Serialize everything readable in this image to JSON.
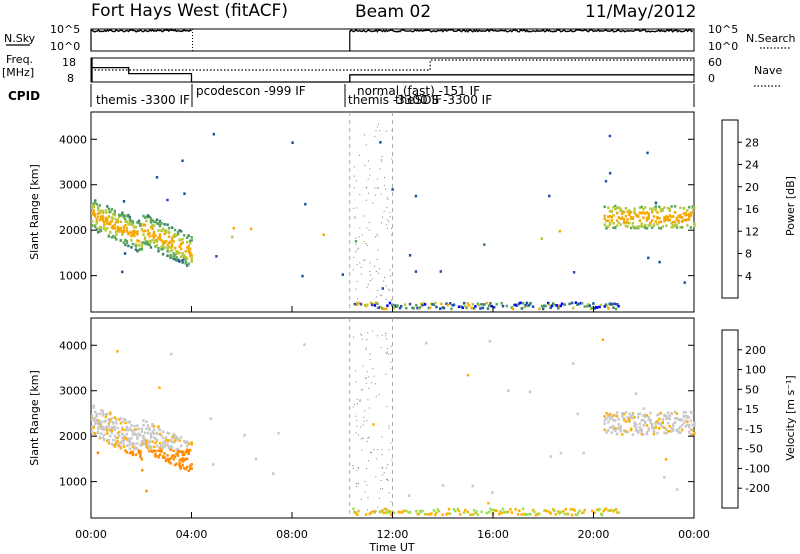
{
  "header": {
    "station": "Fort Hays West (fitACF)",
    "beam": "Beam 02",
    "date": "11/May/2012"
  },
  "colors": {
    "text": "#000000",
    "noise_line": "#000000",
    "power_scale": [
      "#0000ff",
      "#1f4fa8",
      "#3a7d6a",
      "#5aa85a",
      "#b7c93a",
      "#f5a800",
      "#ff7a00",
      "#ff3a00",
      "#e00000"
    ],
    "velocity_scale": [
      "#ff0000",
      "#ff5a00",
      "#ff8c00",
      "#ffb000",
      "#c8c8c8",
      "#c8c8c8",
      "#9be050",
      "#4db84d",
      "#2a8a6a",
      "#3060c0",
      "#2030a0",
      "#0000c0"
    ],
    "ground_scatter": "#7f7f7f"
  },
  "labels": {
    "nsky": "N.Sky",
    "nsearch": "N.Search",
    "freq_line1": "Freq.",
    "freq_line2": "[MHz]",
    "nave": "Nave",
    "cpid": "CPID",
    "noise_top": "10^5",
    "noise_bottom": "10^0",
    "noise_top_right": "10^5",
    "noise_bottom_right": "10^0",
    "freq_top": "18",
    "freq_bottom": "8",
    "nave_top": "60",
    "nave_bottom": "0",
    "ylabel": "Slant Range [km]",
    "xlabel": "Time UT",
    "power_cbar": "Power [dB]",
    "velocity_cbar": "Velocity [m s⁻¹]"
  },
  "cpid_segments": [
    {
      "text": "themis -3300 IF",
      "start_h": 0.0
    },
    {
      "text": "pcodescon -999 IF",
      "start_h": 4.0
    },
    {
      "text": "normal (fast) -151 IF",
      "start_h": 10.3
    },
    {
      "text": "themis -3300 IF",
      "start_h": 10.3
    },
    {
      "text": "theSDS -3300 IF",
      "start_h": 12.0
    }
  ],
  "chart_data": [
    {
      "type": "line",
      "panel": "noise",
      "series": [
        {
          "name": "N.Sky",
          "x": [
            0.0,
            4.0,
            10.3,
            24.0
          ],
          "values_log10": [
            4.6,
            4.6,
            4.6,
            4.6
          ]
        },
        {
          "name": "N.Search",
          "x": [
            0.0,
            24.0
          ],
          "values_log10": [
            0.0,
            0.0
          ]
        }
      ],
      "xlim": [
        0,
        24
      ],
      "ylim_log10": [
        0,
        5
      ]
    },
    {
      "type": "line",
      "panel": "frequency",
      "series": [
        {
          "name": "Freq.",
          "x": [
            0.0,
            1.5,
            1.5,
            4.0,
            4.0,
            10.3,
            10.3,
            24.0
          ],
          "values": [
            14.0,
            14.0,
            11.5,
            11.5,
            8.0,
            8.0,
            11.0,
            11.0
          ]
        },
        {
          "name": "Nave",
          "x": [
            0.0,
            4.0,
            10.3,
            13.5,
            13.5,
            24.0
          ],
          "values": [
            30,
            30,
            30,
            30,
            55,
            55
          ]
        }
      ],
      "xlim": [
        0,
        24
      ],
      "ylim": [
        8,
        18
      ],
      "y2lim": [
        0,
        60
      ]
    },
    {
      "type": "heatmap",
      "panel": "power",
      "xlabel": "",
      "ylabel": "Slant Range [km]",
      "xlim": [
        0,
        24
      ],
      "ylim": [
        200,
        4600
      ],
      "yticks": [
        1000,
        2000,
        3000,
        4000
      ],
      "colorbar_label": "Power [dB]",
      "colorbar_ticks": [
        4,
        8,
        12,
        16,
        20,
        24,
        28
      ],
      "colorbar_range": [
        0,
        32
      ]
    },
    {
      "type": "heatmap",
      "panel": "velocity",
      "xlabel": "Time UT",
      "ylabel": "Slant Range [km]",
      "xlim": [
        0,
        24
      ],
      "ylim": [
        200,
        4600
      ],
      "yticks": [
        1000,
        2000,
        3000,
        4000
      ],
      "xticks": [
        "00:00",
        "04:00",
        "08:00",
        "12:00",
        "16:00",
        "20:00",
        "00:00"
      ],
      "colorbar_label": "Velocity [m s⁻¹]",
      "colorbar_ticks": [
        -200,
        -100,
        -50,
        -15,
        15,
        50,
        100,
        200
      ]
    }
  ],
  "time_ticks": [
    "00:00",
    "04:00",
    "08:00",
    "12:00",
    "16:00",
    "20:00",
    "00:00"
  ],
  "range_ticks": [
    "1000",
    "2000",
    "3000",
    "4000"
  ],
  "power_ticks": [
    "4",
    "8",
    "12",
    "16",
    "20",
    "24",
    "28"
  ],
  "velocity_ticks": [
    "-200",
    "-100",
    "-50",
    "-15",
    "15",
    "50",
    "100",
    "200"
  ]
}
